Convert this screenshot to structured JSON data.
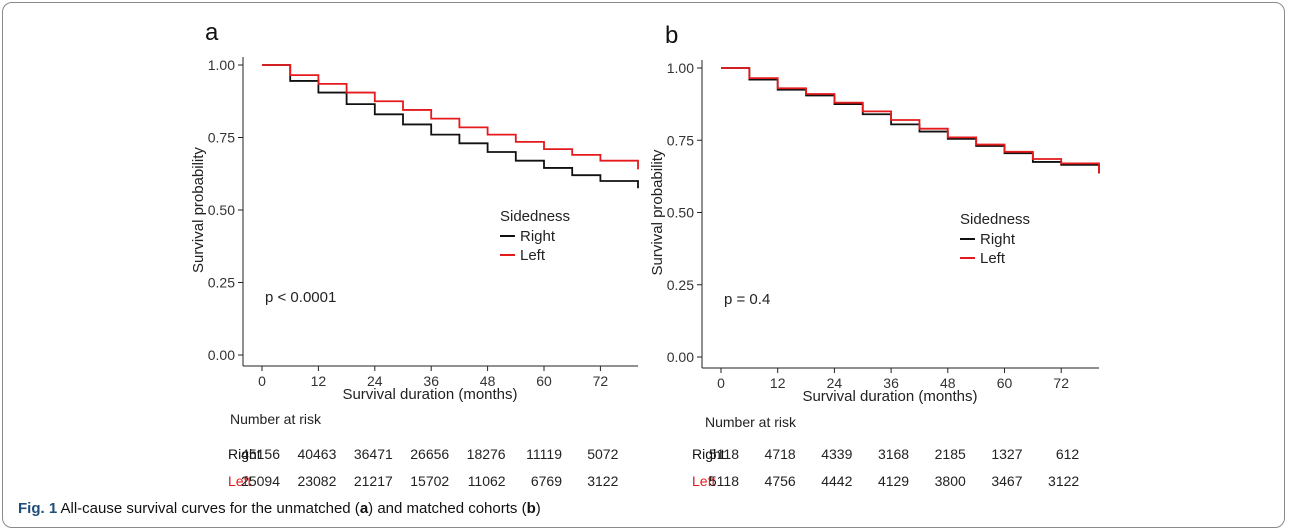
{
  "colors": {
    "right": "#111111",
    "left": "#e41a1c",
    "caption_label": "#1f4e79"
  },
  "chart_data": [
    {
      "panel": "a",
      "type": "line",
      "xlabel": "Survival duration (months)",
      "ylabel": "Survival probability",
      "xlim": [
        0,
        80
      ],
      "ylim": [
        0,
        1
      ],
      "x_ticks": [
        "0",
        "12",
        "24",
        "36",
        "48",
        "60",
        "72"
      ],
      "y_ticks": [
        "0.00",
        "0.25",
        "0.50",
        "0.75",
        "1.00"
      ],
      "grid": false,
      "legend_title": "Sidedness",
      "annotation": "p < 0.0001",
      "series": [
        {
          "name": "Right",
          "color": "#111111",
          "x": [
            0,
            6,
            12,
            18,
            24,
            30,
            36,
            42,
            48,
            54,
            60,
            66,
            72,
            80
          ],
          "y": [
            1.0,
            0.945,
            0.905,
            0.865,
            0.83,
            0.795,
            0.76,
            0.73,
            0.7,
            0.67,
            0.645,
            0.62,
            0.6,
            0.575
          ]
        },
        {
          "name": "Left",
          "color": "#e41a1c",
          "x": [
            0,
            6,
            12,
            18,
            24,
            30,
            36,
            42,
            48,
            54,
            60,
            66,
            72,
            80
          ],
          "y": [
            1.0,
            0.965,
            0.935,
            0.905,
            0.875,
            0.845,
            0.815,
            0.785,
            0.76,
            0.735,
            0.71,
            0.69,
            0.67,
            0.64
          ]
        }
      ],
      "risk_table": {
        "title": "Number at risk",
        "rows": [
          {
            "label": "Right",
            "values": [
              "45156",
              "40463",
              "36471",
              "26656",
              "18276",
              "11119",
              "5072"
            ]
          },
          {
            "label": "Left",
            "values": [
              "25094",
              "23082",
              "21217",
              "15702",
              "11062",
              "6769",
              "3122"
            ]
          }
        ]
      }
    },
    {
      "panel": "b",
      "type": "line",
      "xlabel": "Survival duration (months)",
      "ylabel": "Survival probability",
      "xlim": [
        0,
        80
      ],
      "ylim": [
        0,
        1
      ],
      "x_ticks": [
        "0",
        "12",
        "24",
        "36",
        "48",
        "60",
        "72"
      ],
      "y_ticks": [
        "0.00",
        "0.25",
        "0.50",
        "0.75",
        "1.00"
      ],
      "grid": false,
      "legend_title": "Sidedness",
      "annotation": "p = 0.4",
      "series": [
        {
          "name": "Right",
          "color": "#111111",
          "x": [
            0,
            6,
            12,
            18,
            24,
            30,
            36,
            42,
            48,
            54,
            60,
            66,
            72,
            80
          ],
          "y": [
            1.0,
            0.96,
            0.925,
            0.905,
            0.875,
            0.84,
            0.805,
            0.78,
            0.755,
            0.73,
            0.705,
            0.675,
            0.665,
            0.635
          ]
        },
        {
          "name": "Left",
          "color": "#e41a1c",
          "x": [
            0,
            6,
            12,
            18,
            24,
            30,
            36,
            42,
            48,
            54,
            60,
            66,
            72,
            80
          ],
          "y": [
            1.0,
            0.965,
            0.93,
            0.91,
            0.88,
            0.85,
            0.82,
            0.79,
            0.76,
            0.735,
            0.71,
            0.685,
            0.67,
            0.635
          ]
        }
      ],
      "risk_table": {
        "title": "Number at risk",
        "rows": [
          {
            "label": "Right",
            "values": [
              "5118",
              "4718",
              "4339",
              "3168",
              "2185",
              "1327",
              "612"
            ]
          },
          {
            "label": "Left",
            "values": [
              "5118",
              "4756",
              "4442",
              "4129",
              "3800",
              "3467",
              "3122"
            ]
          }
        ]
      }
    }
  ],
  "caption": {
    "fig_label": "Fig. 1",
    "text_1": " All-cause survival curves for the unmatched (",
    "label_a": "a",
    "text_2": ") and matched cohorts (",
    "label_b": "b",
    "text_3": ")"
  }
}
